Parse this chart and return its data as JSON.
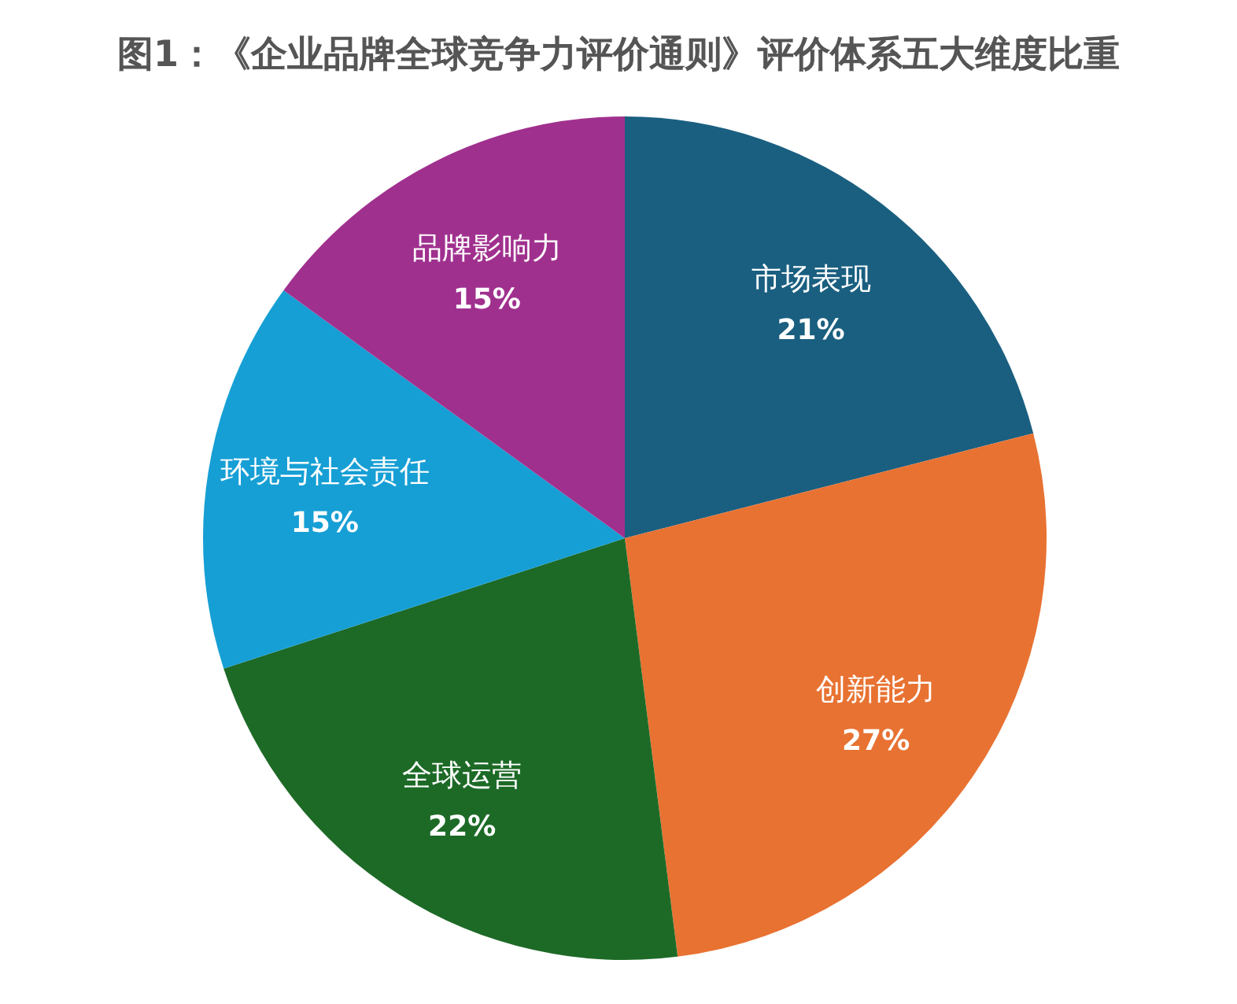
{
  "chart_data": {
    "type": "pie",
    "title": "图1：《企业品牌全球竞争力评价通则》评价体系五大维度比重",
    "categories": [
      "市场表现",
      "创新能力",
      "全球运营",
      "环境与社会责任",
      "品牌影响力"
    ],
    "values": [
      21,
      27,
      22,
      15,
      15
    ],
    "colors": [
      "#1a5f80",
      "#e87232",
      "#1d6a27",
      "#169fd5",
      "#a0308e"
    ],
    "value_labels": [
      "21%",
      "27%",
      "22%",
      "15%",
      "15%"
    ]
  }
}
